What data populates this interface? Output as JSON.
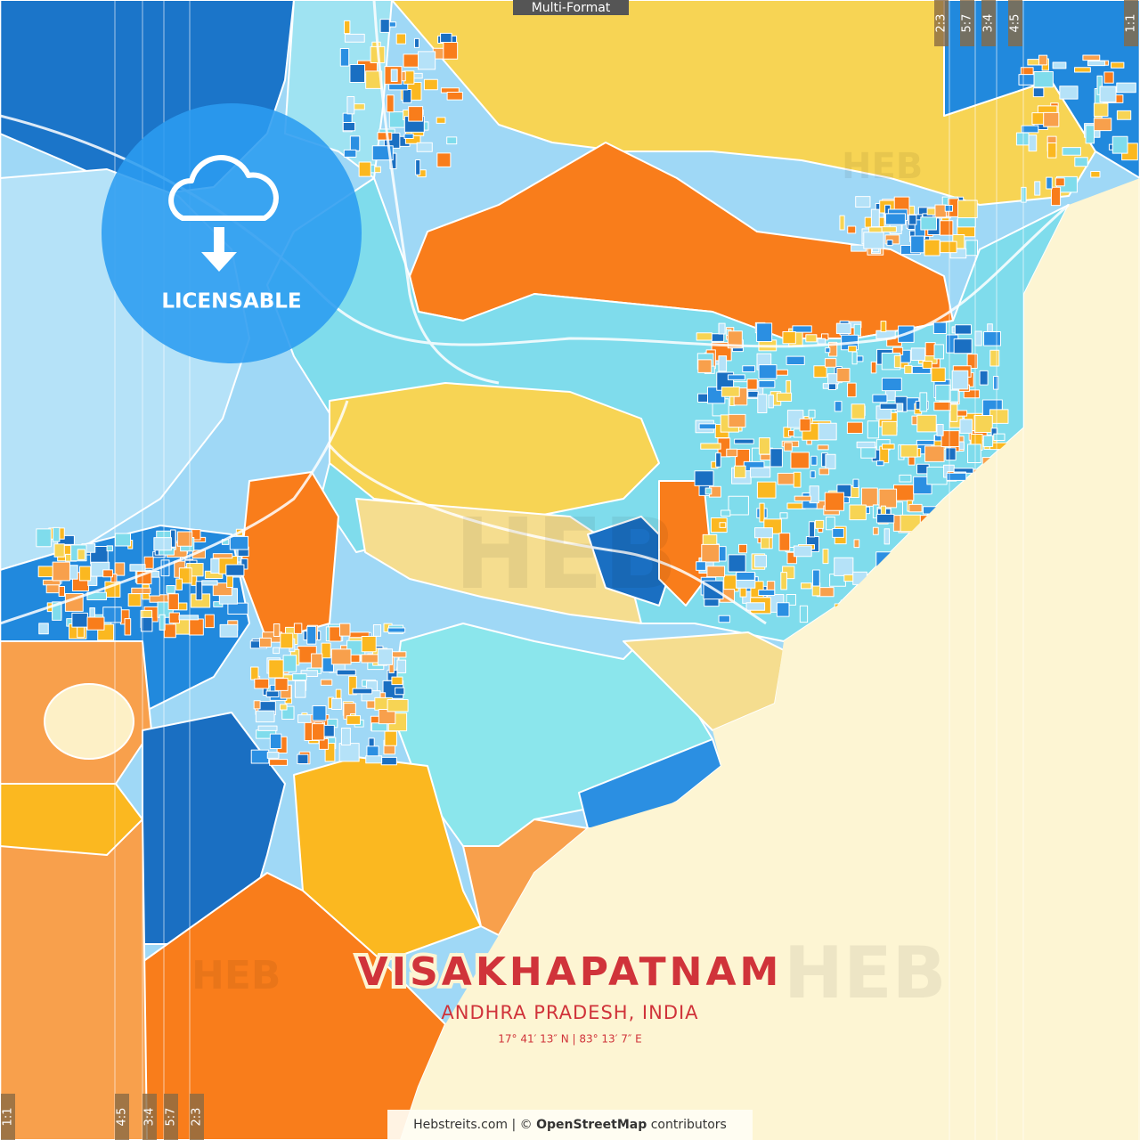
{
  "header": {
    "format_badge": "Multi-Format"
  },
  "badge": {
    "label": "LICENSABLE"
  },
  "title": {
    "city": "VISAKHAPATNAM",
    "region": "ANDHRA PRADESH, INDIA",
    "coordinates": "17° 41′ 13″ N | 83° 13′ 7″ E"
  },
  "watermark": {
    "brand": "HEB"
  },
  "footer": {
    "site": "Hebstreits.com | ©",
    "source": "OpenStreetMap",
    "suffix": "contributors"
  },
  "crop_marks": {
    "bottom": [
      "1:1",
      "4:5",
      "3:4",
      "5:7",
      "2:3"
    ],
    "top": [
      "2:3",
      "5:7",
      "3:4",
      "4:5",
      "1:1"
    ]
  }
}
